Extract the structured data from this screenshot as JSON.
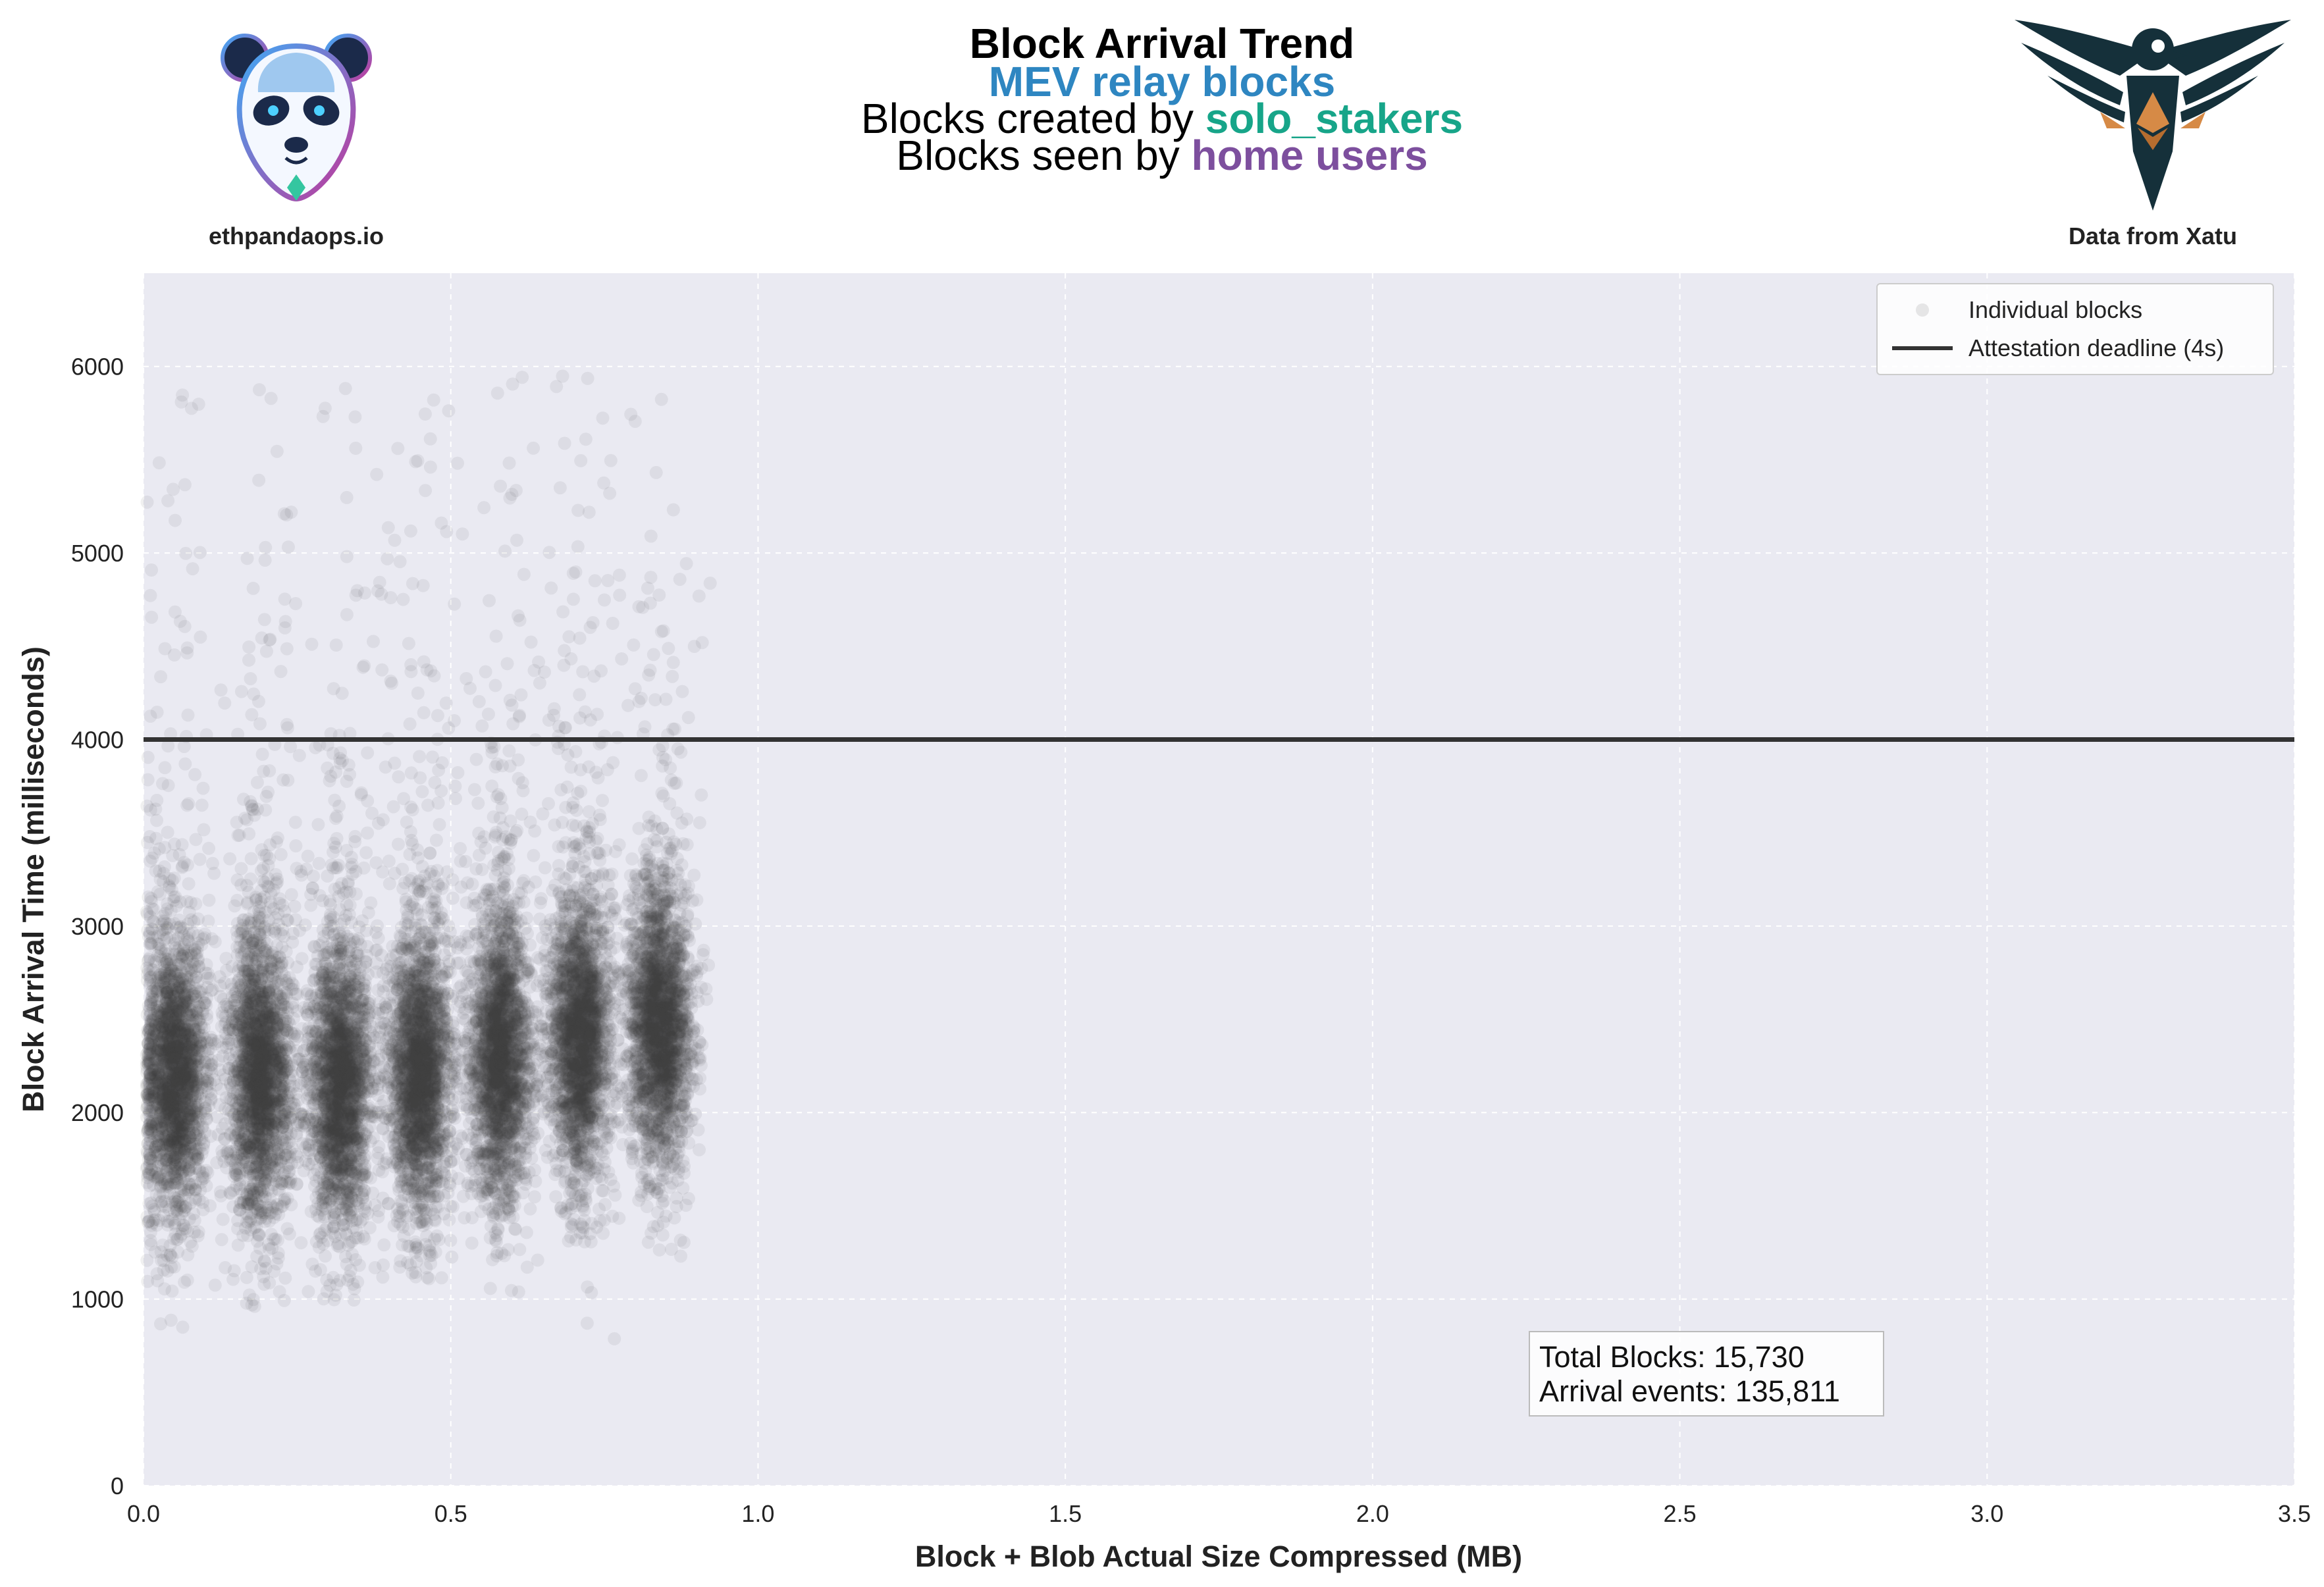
{
  "header": {
    "title": "Block Arrival Trend",
    "subtitle_mev": "MEV relay blocks",
    "line3_prefix": "Blocks created by ",
    "line3_highlight": "solo_stakers",
    "line4_prefix": "Blocks seen by ",
    "line4_highlight": "home users",
    "colors": {
      "mev": "#2e86c1",
      "solo": "#17a589",
      "home": "#7d4f9e"
    },
    "left_brand": "ethpandaops.io",
    "right_brand": "Data from Xatu",
    "left_logo_icon": "panda-logo-icon",
    "right_logo_icon": "xatu-bird-logo-icon"
  },
  "legend": {
    "items": [
      {
        "label": "Individual blocks",
        "icon": "scatter-dot-icon"
      },
      {
        "label": "Attestation deadline (4s)",
        "icon": "solid-line-icon"
      }
    ]
  },
  "stats": {
    "total_blocks": "Total Blocks: 15,730",
    "arrival_events": "Arrival events: 135,811"
  },
  "chart_data": {
    "type": "scatter",
    "xlabel": "Block + Blob Actual Size Compressed (MB)",
    "ylabel": "Block Arrival Time (milliseconds)",
    "xlim": [
      0.0,
      3.5
    ],
    "ylim": [
      0,
      6500
    ],
    "xticks": [
      0.0,
      0.5,
      1.0,
      1.5,
      2.0,
      2.5,
      3.0,
      3.5
    ],
    "xtick_labels": [
      "0.0",
      "0.5",
      "1.0",
      "1.5",
      "2.0",
      "2.5",
      "3.0",
      "3.5"
    ],
    "yticks": [
      0,
      1000,
      2000,
      3000,
      4000,
      5000,
      6000
    ],
    "ytick_labels": [
      "0",
      "1000",
      "2000",
      "3000",
      "4000",
      "5000",
      "6000"
    ],
    "grid": true,
    "legend_position": "top-right",
    "background": "#eaeaf2",
    "point_color": "#404040",
    "deadline": {
      "y": 4000,
      "label": "Attestation deadline (4s)",
      "color": "#333333"
    },
    "clusters": [
      {
        "x_center": 0.05,
        "y_median": 2200,
        "y_min": 330,
        "y_max": 6000
      },
      {
        "x_center": 0.19,
        "y_median": 2200,
        "y_min": 950,
        "y_max": 5900
      },
      {
        "x_center": 0.32,
        "y_median": 2150,
        "y_min": 970,
        "y_max": 6000
      },
      {
        "x_center": 0.45,
        "y_median": 2200,
        "y_min": 1100,
        "y_max": 5850
      },
      {
        "x_center": 0.58,
        "y_median": 2300,
        "y_min": 1000,
        "y_max": 6000
      },
      {
        "x_center": 0.71,
        "y_median": 2400,
        "y_min": 620,
        "y_max": 6000
      },
      {
        "x_center": 0.84,
        "y_median": 2500,
        "y_min": 1050,
        "y_max": 6000
      }
    ]
  }
}
